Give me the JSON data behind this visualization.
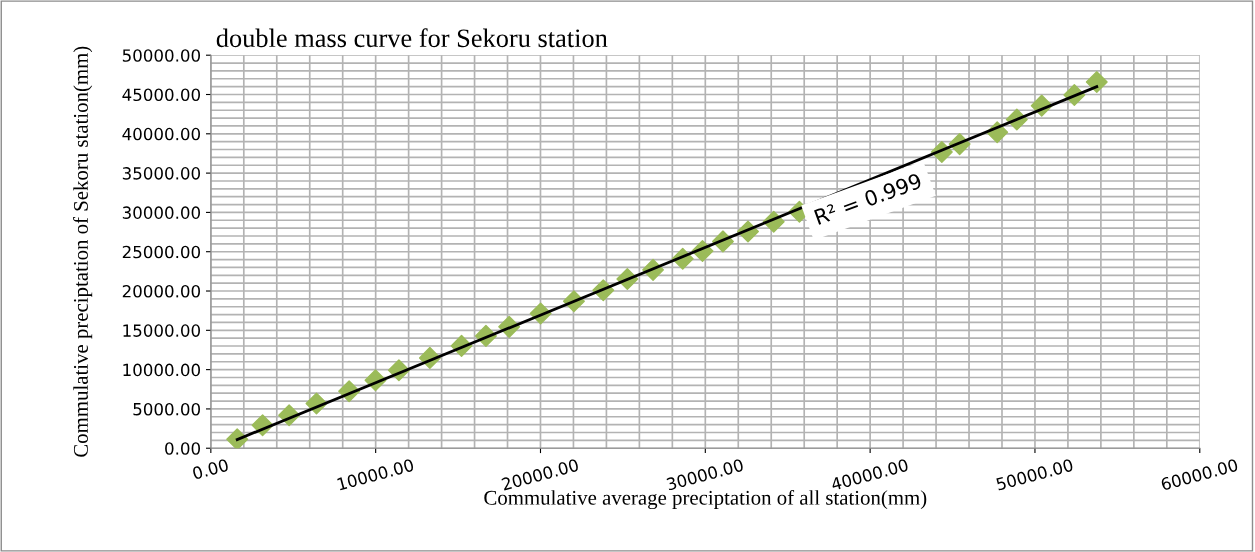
{
  "chart_data": {
    "type": "scatter",
    "title": "double mass curve for Sekoru station",
    "xlabel": "Commulative average preciptation of all station(mm)",
    "ylabel": "Commulative preciptation of Sekoru station(mm)",
    "series": [
      {
        "color": "#9bbb59",
        "marker": "diamond",
        "x": [
          1600,
          3140,
          4750,
          6410,
          8390,
          9990,
          11410,
          13290,
          15210,
          16690,
          18100,
          20010,
          22030,
          23810,
          25270,
          26830,
          28630,
          29830,
          31070,
          32590,
          34150,
          35710,
          44350,
          45430,
          47710,
          48900,
          50410,
          52390,
          53750
        ],
        "values": [
          1150,
          2930,
          4200,
          5690,
          7250,
          8650,
          9920,
          11490,
          13020,
          14290,
          15440,
          17130,
          18700,
          20100,
          21530,
          22690,
          24100,
          25100,
          26310,
          27570,
          28820,
          30080,
          37680,
          38690,
          40200,
          41810,
          43580,
          44940,
          46590
        ]
      },
      {
        "type": "line",
        "color": "#000000",
        "x": [
          1600,
          53750
        ],
        "values": [
          1100,
          46000
        ]
      }
    ],
    "xlim": [
      0,
      60000
    ],
    "ylim": [
      0,
      50000
    ],
    "xticks": [
      {
        "value": 0,
        "label": "0.00"
      },
      {
        "value": 10000,
        "label": "10000.00"
      },
      {
        "value": 20000,
        "label": "20000.00"
      },
      {
        "value": 30000,
        "label": "30000.00"
      },
      {
        "value": 40000,
        "label": "40000.00"
      },
      {
        "value": 50000,
        "label": "50000.00"
      },
      {
        "value": 60000,
        "label": "60000.00"
      }
    ],
    "yticks": [
      {
        "value": 0,
        "label": "0.00"
      },
      {
        "value": 5000,
        "label": "5000.00"
      },
      {
        "value": 10000,
        "label": "10000.00"
      },
      {
        "value": 15000,
        "label": "15000.00"
      },
      {
        "value": 20000,
        "label": "20000.00"
      },
      {
        "value": 25000,
        "label": "25000.00"
      },
      {
        "value": 30000,
        "label": "30000.00"
      },
      {
        "value": 35000,
        "label": "35000.00"
      },
      {
        "value": 40000,
        "label": "40000.00"
      },
      {
        "value": 45000,
        "label": "45000.00"
      },
      {
        "value": 50000,
        "label": "50000.00"
      }
    ],
    "grid": true,
    "legend": false,
    "annotations": [
      "R² = 0.999"
    ]
  }
}
